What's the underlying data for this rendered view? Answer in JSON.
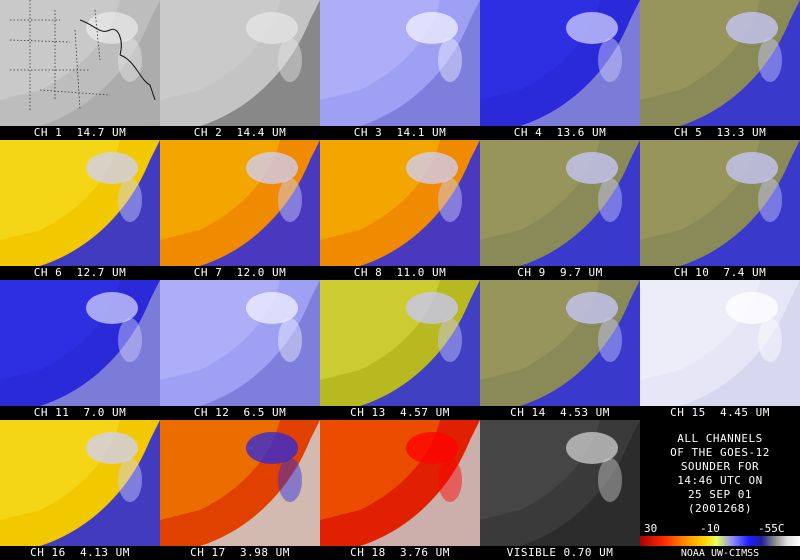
{
  "panels": [
    {
      "caption": "CH 1  14.7 UM",
      "palette": "map-outline"
    },
    {
      "caption": "CH 2  14.4 UM",
      "palette": "grey-haze"
    },
    {
      "caption": "CH 3  14.1 UM",
      "palette": "pale-lavender"
    },
    {
      "caption": "CH 4  13.6 UM",
      "palette": "deep-blue"
    },
    {
      "caption": "CH 5  13.3 UM",
      "palette": "olive-blue"
    },
    {
      "caption": "CH 6  12.7 UM",
      "palette": "yellow-orange"
    },
    {
      "caption": "CH 7  12.0 UM",
      "palette": "orange"
    },
    {
      "caption": "CH 8  11.0 UM",
      "palette": "orange"
    },
    {
      "caption": "CH 9  9.7 UM",
      "palette": "olive-blue"
    },
    {
      "caption": "CH 10  7.4 UM",
      "palette": "olive-blue"
    },
    {
      "caption": "CH 11  7.0 UM",
      "palette": "deep-blue"
    },
    {
      "caption": "CH 12  6.5 UM",
      "palette": "pale-lavender"
    },
    {
      "caption": "CH 13  4.57 UM",
      "palette": "yellow-olive"
    },
    {
      "caption": "CH 14  4.53 UM",
      "palette": "olive-blue"
    },
    {
      "caption": "CH 15  4.45 UM",
      "palette": "near-white"
    },
    {
      "caption": "CH 16  4.13 UM",
      "palette": "yellow-orange"
    },
    {
      "caption": "CH 17  3.98 UM",
      "palette": "red-orange"
    },
    {
      "caption": "CH 18  3.76 UM",
      "palette": "red"
    },
    {
      "caption": "VISIBLE 0.70 UM",
      "palette": "visible-grey"
    }
  ],
  "info": {
    "lines": [
      "ALL CHANNELS",
      "OF THE GOES-12",
      "SOUNDER FOR",
      "14:46 UTC ON",
      "25 SEP 01",
      "(2001268)"
    ],
    "scale_labels": [
      "30",
      "-10",
      "-55C"
    ],
    "credit": "NOAA UW-CIMSS"
  },
  "palettes": {
    "map-outline": {
      "bg": "#bdbdbd",
      "land": "#cfcfcf",
      "sea": "#a9a9a9",
      "cloud": "#e8e8e8"
    },
    "grey-haze": {
      "bg": "#c4c4c4",
      "land": "#cdcdcd",
      "sea": "#7e7e7e",
      "cloud": "#e6e6e6"
    },
    "pale-lavender": {
      "bg": "#9ea0f4",
      "land": "#b4b4f8",
      "sea": "#7878d8",
      "cloud": "#f0f0ff"
    },
    "deep-blue": {
      "bg": "#2a2ad8",
      "land": "#3030e8",
      "sea": "#8a8ad8",
      "cloud": "#d0d0ff"
    },
    "olive-blue": {
      "bg": "#8a8a58",
      "land": "#9c9a5c",
      "sea": "#2a2ae0",
      "cloud": "#c8c8ff"
    },
    "yellow-orange": {
      "bg": "#f2c800",
      "land": "#f7dc20",
      "sea": "#2222e0",
      "cloud": "#cfd0ff"
    },
    "orange": {
      "bg": "#f08a00",
      "land": "#f4b000",
      "sea": "#2a2ae0",
      "cloud": "#d0d0ff"
    },
    "yellow-olive": {
      "bg": "#b8b820",
      "land": "#d4d43a",
      "sea": "#2a2ae0",
      "cloud": "#c8c8ff"
    },
    "near-white": {
      "bg": "#e6e6f6",
      "land": "#f0f0fc",
      "sea": "#d4d4ee",
      "cloud": "#ffffff"
    },
    "red-orange": {
      "bg": "#e04000",
      "land": "#f08000",
      "sea": "#d0d0d0",
      "cloud": "#2a2ae0"
    },
    "red": {
      "bg": "#e02000",
      "land": "#f06000",
      "sea": "#c8c8c8",
      "cloud": "#ff0000"
    },
    "visible-grey": {
      "bg": "#3a3a3a",
      "land": "#4a4a4a",
      "sea": "#2a2a2a",
      "cloud": "#cfcfcf"
    }
  }
}
